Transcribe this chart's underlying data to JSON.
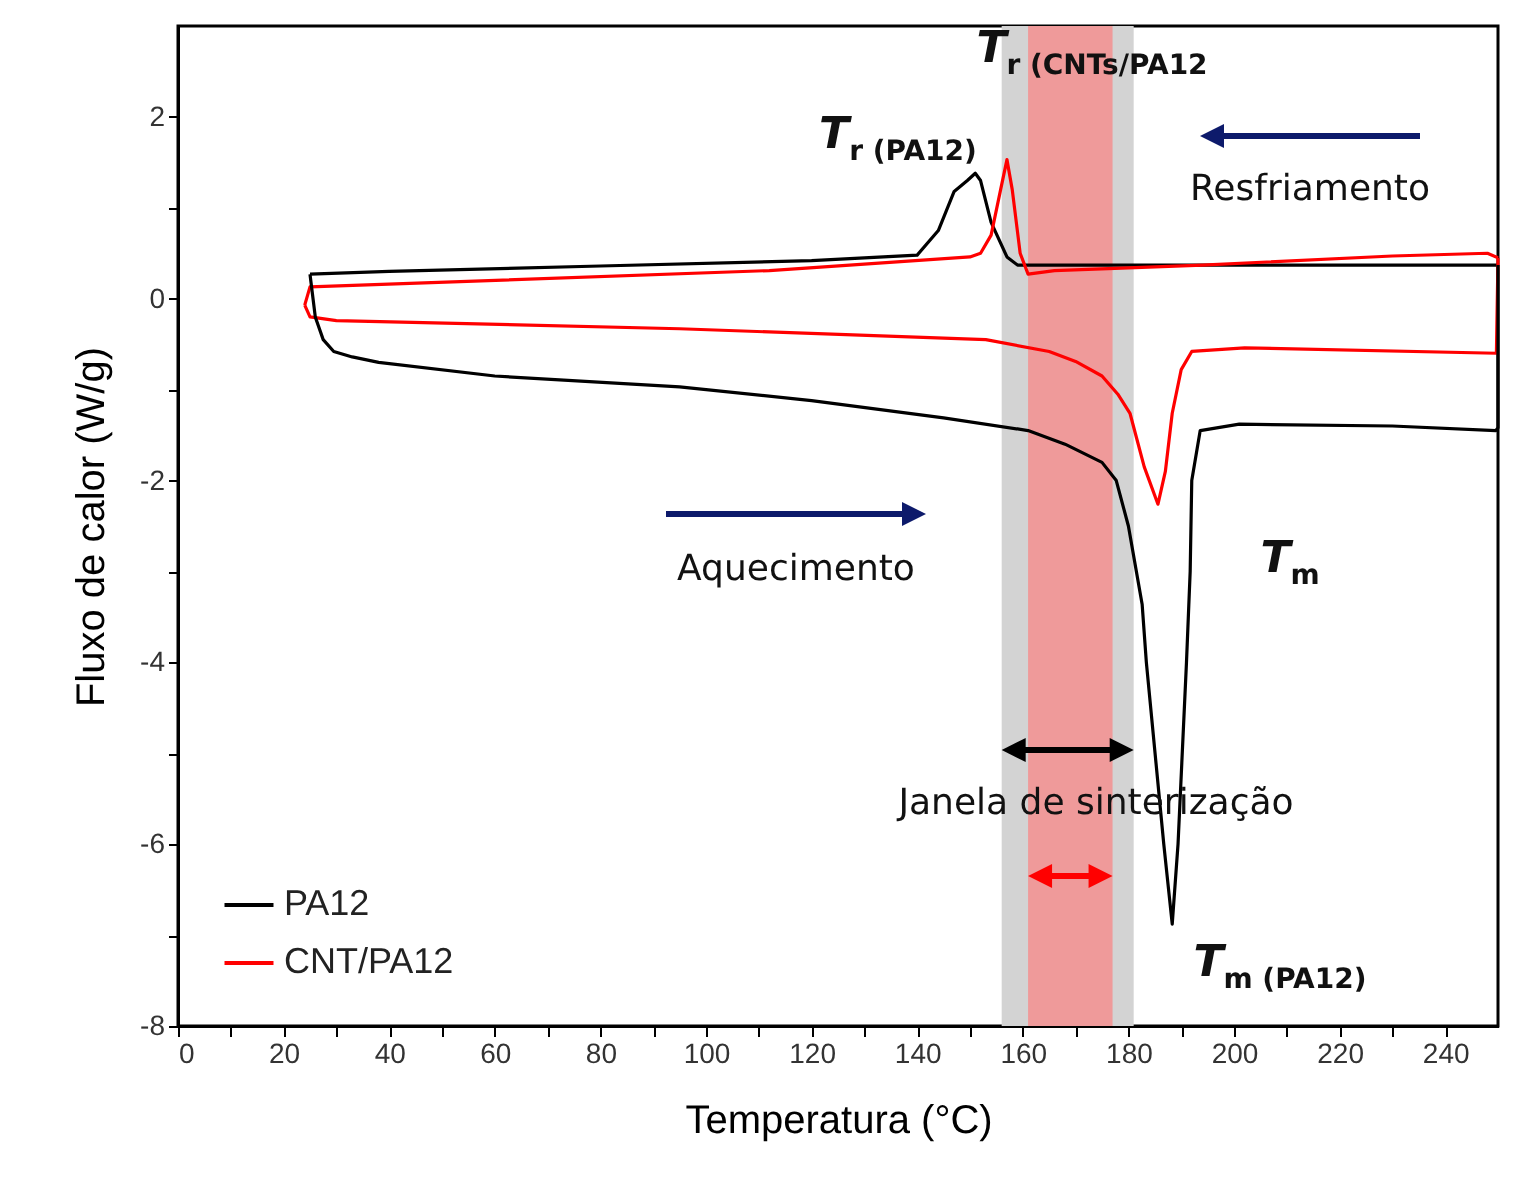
{
  "chart_data": {
    "type": "line",
    "xlabel": "Temperatura (°C)",
    "ylabel": "Fluxo de calor (W/g)",
    "xlim": [
      0,
      250
    ],
    "ylim": [
      -8,
      3
    ],
    "xticks": [
      0,
      {
        "value": 10,
        "label": null
      },
      20,
      {
        "value": 30,
        "label": null
      },
      40,
      {
        "value": 50,
        "label": null
      },
      60,
      {
        "value": 70,
        "label": null
      },
      80,
      {
        "value": 90,
        "label": null
      },
      100,
      {
        "value": 110,
        "label": null
      },
      120,
      {
        "value": 130,
        "label": null
      },
      140,
      {
        "value": 150,
        "label": null
      },
      160,
      {
        "value": 170,
        "label": null
      },
      180,
      {
        "value": 190,
        "label": null
      },
      200,
      {
        "value": 210,
        "label": null
      },
      220,
      {
        "value": 230,
        "label": null
      },
      240
    ],
    "yticks": [
      -8,
      {
        "value": -7,
        "label": null
      },
      -6,
      {
        "value": -5,
        "label": null
      },
      -4,
      {
        "value": -3,
        "label": null
      },
      -2,
      {
        "value": -1,
        "label": null
      },
      0,
      {
        "value": 1,
        "label": null
      },
      2
    ],
    "legend": "bottom left",
    "line_style": "solid",
    "series": [
      {
        "name": "PA12",
        "color": "#000000",
        "x": [
          25,
          26,
          27.5,
          29.5,
          33,
          38,
          60,
          95,
          120,
          145,
          161,
          168,
          175,
          177.7,
          180,
          182.6,
          183.4,
          186.7,
          188.3,
          189.4,
          191,
          191.7,
          192,
          193.6,
          201,
          230,
          249.6,
          250,
          250
        ],
        "values": [
          0.27,
          -0.2,
          -0.45,
          -0.58,
          -0.64,
          -0.7,
          -0.85,
          -0.97,
          -1.12,
          -1.31,
          -1.45,
          -1.6,
          -1.8,
          -2.0,
          -2.5,
          -3.36,
          -4,
          -6,
          -6.88,
          -6,
          -4,
          -3,
          -2,
          -1.45,
          -1.38,
          -1.4,
          -1.45,
          -1.42,
          0.37
        ]
      },
      {
        "color": "#000000",
        "x": [
          25,
          40,
          80,
          120,
          140,
          144,
          147,
          149.5,
          151,
          152,
          154,
          157,
          159,
          170,
          200,
          250
        ],
        "values": [
          0.27,
          0.3,
          0.36,
          0.42,
          0.48,
          0.75,
          1.18,
          1.3,
          1.38,
          1.3,
          0.84,
          0.46,
          0.37,
          0.37,
          0.37,
          0.37
        ]
      },
      {
        "name": "CNT/PA12",
        "color": "#ff0000",
        "x": [
          24,
          25,
          30,
          95,
          153,
          165,
          170,
          175,
          178,
          180.3,
          183,
          185.6,
          187,
          188.3,
          190,
          192,
          202,
          249.7,
          250
        ],
        "values": [
          -0.07,
          -0.2,
          -0.24,
          -0.33,
          -0.45,
          -0.58,
          -0.69,
          -0.85,
          -1.05,
          -1.26,
          -1.85,
          -2.26,
          -1.9,
          -1.26,
          -0.78,
          -0.58,
          -0.54,
          -0.6,
          0.45
        ]
      },
      {
        "color": "#ff0000",
        "x": [
          24,
          25,
          112,
          150,
          152,
          154,
          155.8,
          157,
          158,
          159.5,
          161,
          166,
          194,
          230,
          248,
          250
        ],
        "values": [
          -0.07,
          0.13,
          0.31,
          0.46,
          0.5,
          0.7,
          1.2,
          1.53,
          1.2,
          0.5,
          0.27,
          0.31,
          0.37,
          0.47,
          0.5,
          0.45
        ]
      }
    ],
    "bands": [
      {
        "axis": "x",
        "from": 156,
        "to": 181,
        "color": "#d3d3d3"
      },
      {
        "axis": "x",
        "from": 161,
        "to": 177,
        "color": "#ef9a9a"
      }
    ],
    "annotations": [
      "T$_{r (PA12)}$",
      "T$_{r (CNTs/PA12}$",
      "Resfriamento",
      "Aquecimento",
      "T$_{m}$",
      "Janela de sinterização",
      "T$_{m (PA12)}$"
    ]
  }
}
